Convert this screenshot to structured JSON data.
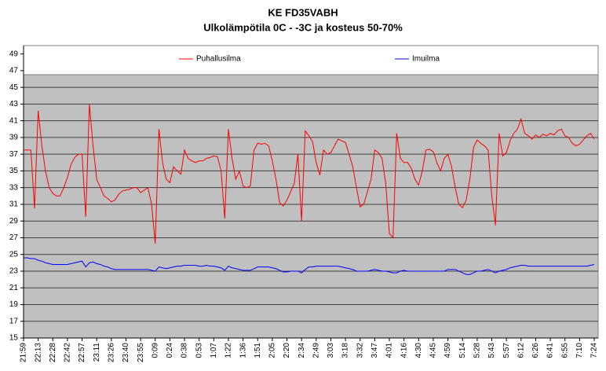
{
  "chart_data": {
    "type": "line",
    "title": "KE FD35VABH",
    "subtitle": "Ulkolämpötila 0C - -3C ja kosteus 50-70%",
    "categories": [
      "21:59",
      null,
      null,
      null,
      "22:13",
      null,
      null,
      null,
      "22:28",
      null,
      null,
      null,
      "22:42",
      null,
      null,
      null,
      "22:57",
      null,
      null,
      null,
      "23:11",
      null,
      null,
      null,
      "23:26",
      null,
      null,
      null,
      "23:40",
      null,
      null,
      null,
      "23:55",
      null,
      null,
      null,
      "0:09",
      null,
      null,
      null,
      "0:24",
      null,
      null,
      null,
      "0:38",
      null,
      null,
      null,
      "0:53",
      null,
      null,
      null,
      "1:07",
      null,
      null,
      null,
      "1:22",
      null,
      null,
      null,
      "1:36",
      null,
      null,
      null,
      "1:51",
      null,
      null,
      null,
      "2:05",
      null,
      null,
      null,
      "2:20",
      null,
      null,
      null,
      "2:34",
      null,
      null,
      null,
      "2:49",
      null,
      null,
      null,
      "3:03",
      null,
      null,
      null,
      "3:18",
      null,
      null,
      null,
      "3:32",
      null,
      null,
      null,
      "3:47",
      null,
      null,
      null,
      "4:01",
      null,
      null,
      null,
      "4:16",
      null,
      null,
      null,
      "4:30",
      null,
      null,
      null,
      "4:45",
      null,
      null,
      null,
      "4:59",
      null,
      null,
      null,
      "5:14",
      null,
      null,
      null,
      "5:28",
      null,
      null,
      null,
      "5:43",
      null,
      null,
      null,
      "5:57",
      null,
      null,
      null,
      "6:12",
      null,
      null,
      null,
      "6:26",
      null,
      null,
      null,
      "6:41",
      null,
      null,
      null,
      "6:55",
      null,
      null,
      null,
      "7:10",
      null,
      null,
      null,
      "7:24"
    ],
    "series": [
      {
        "name": "Puhallusilma",
        "color": "#ff0000",
        "values": [
          37.5,
          37.5,
          37.5,
          30.5,
          42.2,
          38,
          35,
          33,
          32.3,
          32,
          32,
          33,
          34.2,
          35.8,
          36.6,
          37,
          37,
          29.5,
          43,
          38,
          34,
          33,
          32,
          31.7,
          31.3,
          31.5,
          32.2,
          32.6,
          32.7,
          32.8,
          33,
          33,
          32.4,
          32.7,
          33,
          31,
          26.3,
          40,
          36,
          34,
          33.6,
          35.5,
          35,
          34.6,
          37.5,
          36.5,
          36.2,
          36,
          36.2,
          36.2,
          36.5,
          36.6,
          36.8,
          36.7,
          35,
          29.3,
          40,
          36.5,
          34,
          35,
          33.2,
          33,
          33.2,
          37.5,
          38.3,
          38.2,
          38.3,
          38,
          36.2,
          34,
          31.2,
          30.8,
          31.5,
          32.5,
          33.5,
          37,
          29,
          39.8,
          39.2,
          38.5,
          36,
          34.5,
          37.5,
          37,
          37.2,
          38,
          38.8,
          38.6,
          38.4,
          37,
          35.5,
          33,
          30.7,
          31,
          32.5,
          34,
          37.5,
          37.2,
          36.5,
          33.5,
          27.5,
          27,
          39.5,
          36.5,
          36,
          36,
          35.3,
          34,
          33.3,
          35,
          37.5,
          37.6,
          37.3,
          36,
          35,
          36.5,
          37,
          35.5,
          33,
          31,
          30.6,
          31.5,
          34,
          37.8,
          38.7,
          38.3,
          38,
          37.5,
          32,
          28.5,
          39.5,
          36.8,
          37.2,
          38.6,
          39.5,
          40,
          41.2,
          39.5,
          39.2,
          38.8,
          39.3,
          39,
          39.4,
          39.2,
          39.5,
          39.3,
          39.8,
          40,
          39.2,
          39,
          38.3,
          38,
          38.2,
          38.7,
          39.2,
          39.5,
          38.8
        ]
      },
      {
        "name": "Imuilma",
        "color": "#0000ff",
        "values": [
          24.6,
          24.6,
          24.5,
          24.5,
          24.3,
          24.2,
          24.0,
          23.9,
          23.8,
          23.8,
          23.8,
          23.8,
          23.8,
          23.9,
          24.0,
          24.1,
          24.2,
          23.5,
          24.0,
          24.1,
          23.9,
          23.8,
          23.6,
          23.5,
          23.3,
          23.2,
          23.2,
          23.2,
          23.2,
          23.2,
          23.2,
          23.2,
          23.2,
          23.2,
          23.2,
          23.1,
          23.0,
          23.5,
          23.4,
          23.3,
          23.4,
          23.5,
          23.6,
          23.6,
          23.7,
          23.7,
          23.7,
          23.7,
          23.6,
          23.6,
          23.7,
          23.6,
          23.6,
          23.5,
          23.4,
          23.1,
          23.6,
          23.4,
          23.3,
          23.2,
          23.1,
          23.1,
          23.1,
          23.3,
          23.5,
          23.5,
          23.5,
          23.5,
          23.4,
          23.3,
          23.1,
          22.9,
          22.9,
          23.0,
          23.0,
          23.0,
          22.8,
          23.2,
          23.5,
          23.5,
          23.6,
          23.6,
          23.6,
          23.6,
          23.6,
          23.6,
          23.6,
          23.5,
          23.4,
          23.3,
          23.2,
          23.0,
          23.0,
          23.0,
          23.0,
          23.1,
          23.2,
          23.1,
          23.0,
          23.0,
          22.9,
          22.8,
          22.8,
          23.0,
          23.1,
          23.0,
          23.0,
          23.0,
          23.0,
          23.0,
          23.0,
          23.0,
          23.0,
          23.0,
          23.0,
          23.0,
          23.2,
          23.2,
          23.2,
          23.0,
          22.8,
          22.6,
          22.6,
          22.8,
          23.0,
          23.0,
          23.1,
          23.2,
          23.0,
          22.8,
          23.0,
          23.1,
          23.2,
          23.4,
          23.5,
          23.6,
          23.7,
          23.7,
          23.6,
          23.6,
          23.6,
          23.6,
          23.6,
          23.6,
          23.6,
          23.6,
          23.6,
          23.6,
          23.6,
          23.6,
          23.6,
          23.6,
          23.6,
          23.6,
          23.6,
          23.7,
          23.8
        ]
      }
    ],
    "ylim": [
      15,
      50
    ],
    "yticks": [
      15,
      17,
      19,
      21,
      23,
      25,
      27,
      29,
      31,
      33,
      35,
      37,
      39,
      41,
      43,
      45,
      47,
      49
    ],
    "grid": true,
    "legend": "top"
  }
}
